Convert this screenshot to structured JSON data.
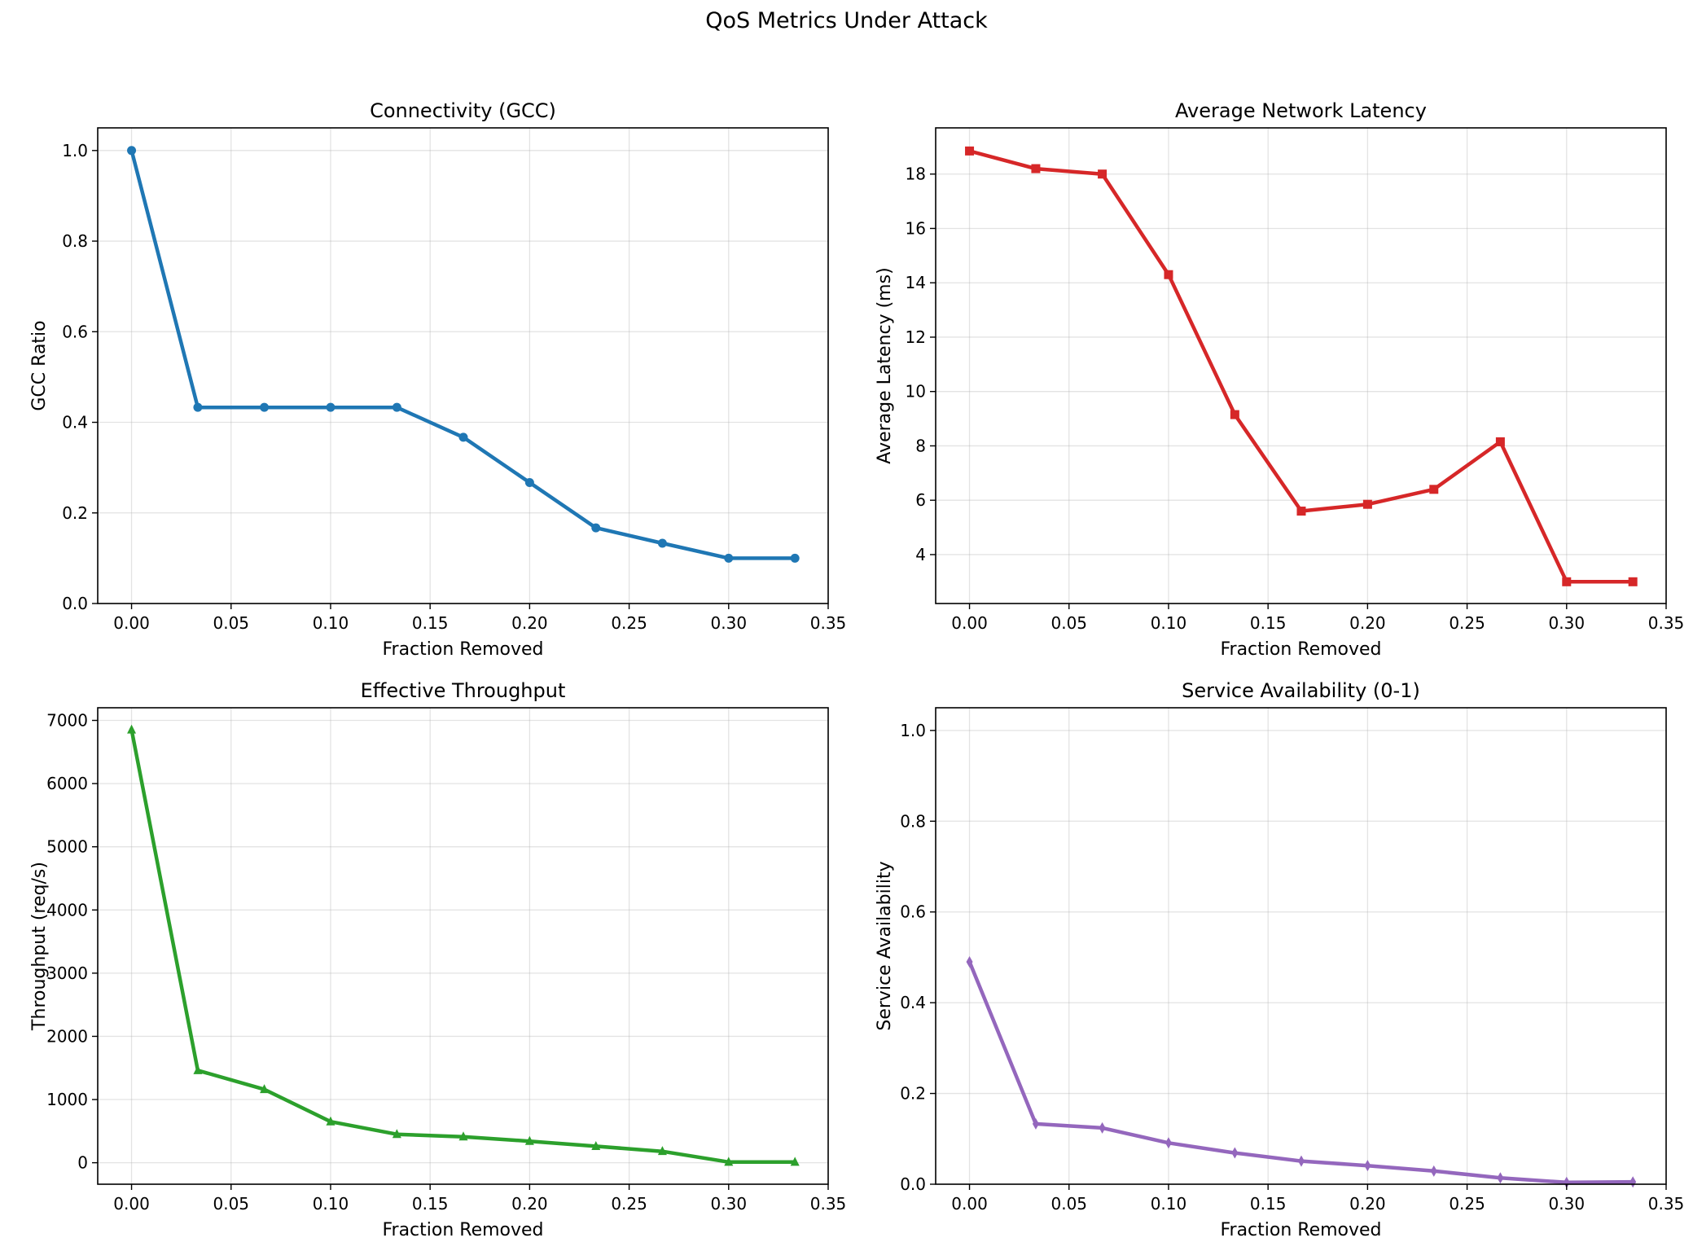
{
  "suptitle": "QoS Metrics Under Attack",
  "chart_data": [
    {
      "type": "line",
      "title": "Connectivity (GCC)",
      "xlabel": "Fraction Removed",
      "ylabel": "GCC Ratio",
      "xlim": [
        -0.017,
        0.35
      ],
      "ylim": [
        0.0,
        1.05
      ],
      "xticks": [
        0.0,
        0.05,
        0.1,
        0.15,
        0.2,
        0.25,
        0.3,
        0.35
      ],
      "xtick_labels": [
        "0.00",
        "0.05",
        "0.10",
        "0.15",
        "0.20",
        "0.25",
        "0.30",
        "0.35"
      ],
      "yticks": [
        0.0,
        0.2,
        0.4,
        0.6,
        0.8,
        1.0
      ],
      "ytick_labels": [
        "0.0",
        "0.2",
        "0.4",
        "0.6",
        "0.8",
        "1.0"
      ],
      "grid": true,
      "marker": "circle",
      "color": "#1f77b4",
      "x": [
        0.0,
        0.0333,
        0.0667,
        0.1,
        0.1333,
        0.1667,
        0.2,
        0.2333,
        0.2667,
        0.3,
        0.3333
      ],
      "y": [
        1.0,
        0.433,
        0.433,
        0.433,
        0.433,
        0.367,
        0.267,
        0.167,
        0.133,
        0.1,
        0.1
      ]
    },
    {
      "type": "line",
      "title": "Average Network Latency",
      "xlabel": "Fraction Removed",
      "ylabel": "Average Latency (ms)",
      "xlim": [
        -0.017,
        0.35
      ],
      "ylim": [
        2.2,
        19.7
      ],
      "xticks": [
        0.0,
        0.05,
        0.1,
        0.15,
        0.2,
        0.25,
        0.3,
        0.35
      ],
      "xtick_labels": [
        "0.00",
        "0.05",
        "0.10",
        "0.15",
        "0.20",
        "0.25",
        "0.30",
        "0.35"
      ],
      "yticks": [
        4,
        6,
        8,
        10,
        12,
        14,
        16,
        18
      ],
      "ytick_labels": [
        "4",
        "6",
        "8",
        "10",
        "12",
        "14",
        "16",
        "18"
      ],
      "grid": true,
      "marker": "square",
      "color": "#d62728",
      "x": [
        0.0,
        0.0333,
        0.0667,
        0.1,
        0.1333,
        0.1667,
        0.2,
        0.2333,
        0.2667,
        0.3,
        0.3333
      ],
      "y": [
        18.85,
        18.2,
        18.0,
        14.3,
        9.15,
        5.6,
        5.85,
        6.4,
        8.15,
        3.0,
        3.0
      ]
    },
    {
      "type": "line",
      "title": "Effective Throughput",
      "xlabel": "Fraction Removed",
      "ylabel": "Throughput (req/s)",
      "xlim": [
        -0.017,
        0.35
      ],
      "ylim": [
        -340,
        7200
      ],
      "xticks": [
        0.0,
        0.05,
        0.1,
        0.15,
        0.2,
        0.25,
        0.3,
        0.35
      ],
      "xtick_labels": [
        "0.00",
        "0.05",
        "0.10",
        "0.15",
        "0.20",
        "0.25",
        "0.30",
        "0.35"
      ],
      "yticks": [
        0,
        1000,
        2000,
        3000,
        4000,
        5000,
        6000,
        7000
      ],
      "ytick_labels": [
        "0",
        "1000",
        "2000",
        "3000",
        "4000",
        "5000",
        "6000",
        "7000"
      ],
      "grid": true,
      "marker": "triangle",
      "color": "#2ca02c",
      "x": [
        0.0,
        0.0333,
        0.0667,
        0.1,
        0.1333,
        0.1667,
        0.2,
        0.2333,
        0.2667,
        0.3,
        0.3333
      ],
      "y": [
        6850,
        1460,
        1160,
        650,
        450,
        410,
        340,
        260,
        180,
        10,
        10
      ]
    },
    {
      "type": "line",
      "title": "Service Availability (0-1)",
      "xlabel": "Fraction Removed",
      "ylabel": "Service Availability",
      "xlim": [
        -0.017,
        0.35
      ],
      "ylim": [
        0.0,
        1.05
      ],
      "xticks": [
        0.0,
        0.05,
        0.1,
        0.15,
        0.2,
        0.25,
        0.3,
        0.35
      ],
      "xtick_labels": [
        "0.00",
        "0.05",
        "0.10",
        "0.15",
        "0.20",
        "0.25",
        "0.30",
        "0.35"
      ],
      "yticks": [
        0.0,
        0.2,
        0.4,
        0.6,
        0.8,
        1.0
      ],
      "ytick_labels": [
        "0.0",
        "0.2",
        "0.4",
        "0.6",
        "0.8",
        "1.0"
      ],
      "grid": true,
      "marker": "diamond",
      "color": "#9467bd",
      "x": [
        0.0,
        0.0333,
        0.0667,
        0.1,
        0.1333,
        0.1667,
        0.2,
        0.2333,
        0.2667,
        0.3,
        0.3333
      ],
      "y": [
        0.49,
        0.133,
        0.124,
        0.091,
        0.069,
        0.051,
        0.041,
        0.029,
        0.014,
        0.004,
        0.005
      ]
    }
  ]
}
